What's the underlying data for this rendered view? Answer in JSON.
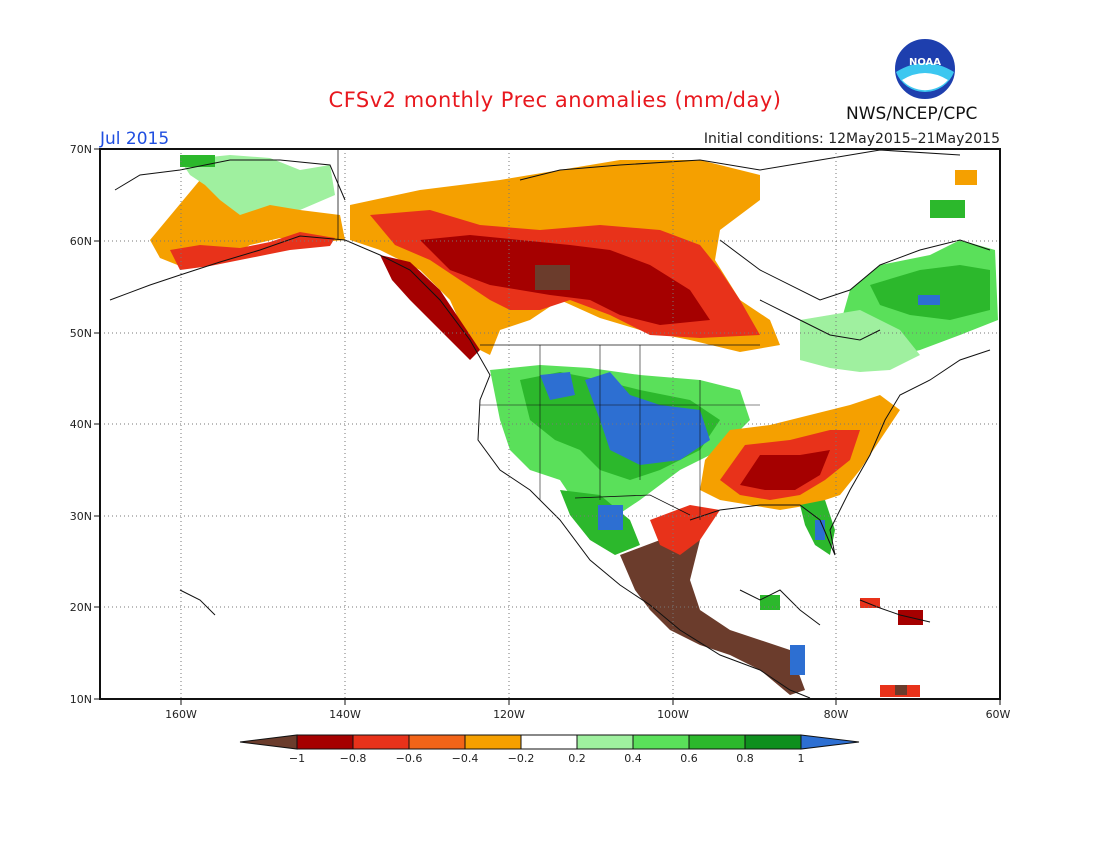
{
  "title": "CFSv2 monthly Prec anomalies (mm/day)",
  "month": "Jul 2015",
  "initial_conditions": "Initial conditions: 12May2015–21May2015",
  "agency": "NWS/NCEP/CPC",
  "logo_text": "NOAA",
  "lat_labels": [
    "70N",
    "60N",
    "50N",
    "40N",
    "30N",
    "20N",
    "10N"
  ],
  "lon_labels": [
    "160W",
    "140W",
    "120W",
    "100W",
    "80W",
    "60W"
  ],
  "colorbar": {
    "labels": [
      "−1",
      "−0.8",
      "−0.6",
      "−0.4",
      "−0.2",
      "0.2",
      "0.4",
      "0.6",
      "0.8",
      "1"
    ],
    "colors": [
      "#6b3c2c",
      "#a50000",
      "#e8321a",
      "#f26418",
      "#f5a000",
      "#ffffff",
      "#9ff09f",
      "#5ae05a",
      "#2cb82c",
      "#0e8f1e",
      "#2d6fd2"
    ]
  },
  "colors": {
    "title": "#e8181e",
    "month": "#1f4ee0",
    "coast": "#111111"
  }
}
